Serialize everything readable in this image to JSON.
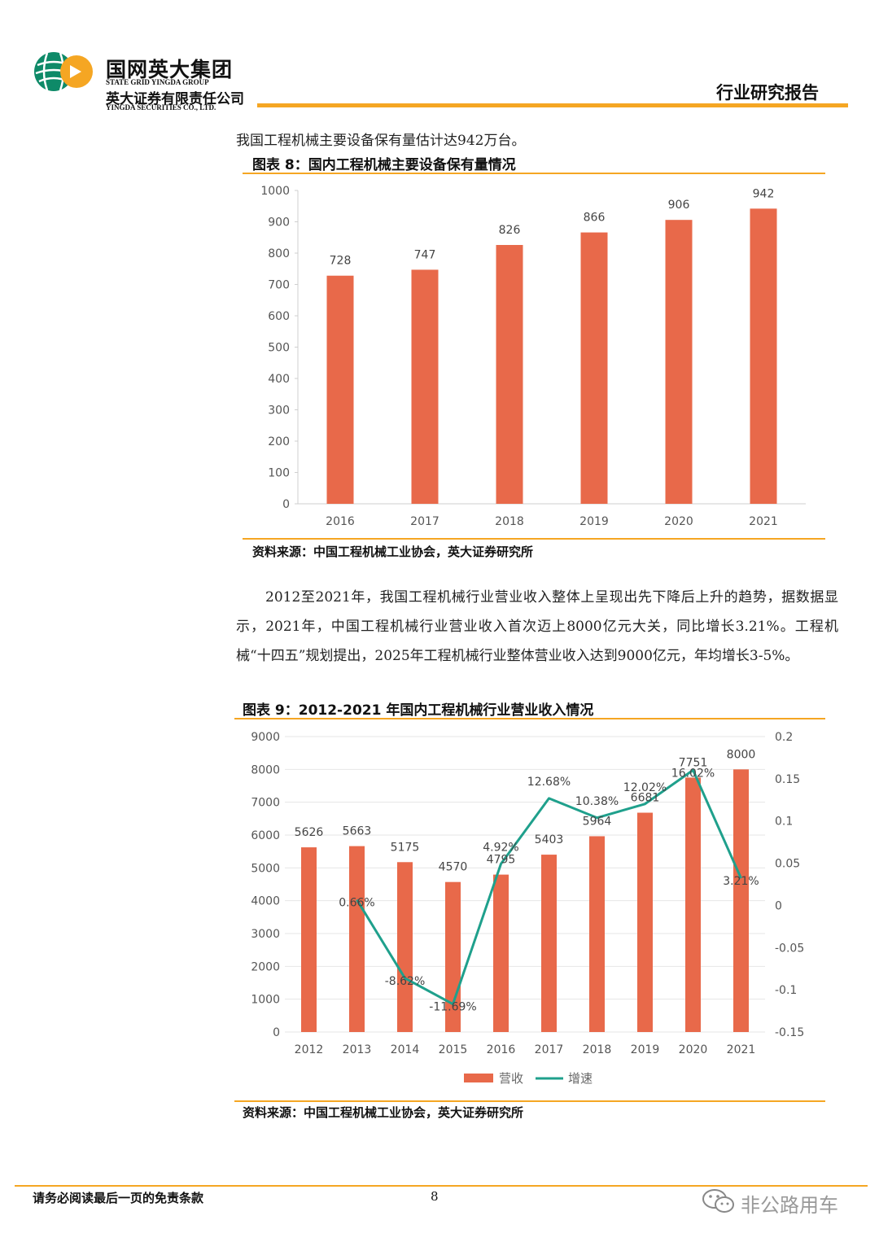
{
  "header": {
    "logo_cn": "国网英大集团",
    "logo_en": "STATE GRID YINGDA GROUP",
    "company_cn": "英大证券有限责任公司",
    "company_en": "YINGDA SECURITIES CO., LTD.",
    "report_type": "行业研究报告"
  },
  "intro_line": "我国工程机械主要设备保有量估计达942万台。",
  "figure8": {
    "caption": "图表 8：国内工程机械主要设备保有量情况",
    "source": "资料来源：中国工程机械工业协会，英大证券研究所"
  },
  "paragraph": "2012至2021年，我国工程机械行业营业收入整体上呈现出先下降后上升的趋势，据数据显示，2021年，中国工程机械行业营业收入首次迈上8000亿元大关，同比增长3.21%。工程机械“十四五”规划提出，2025年工程机械行业整体营业收入达到9000亿元，年均增长3-5%。",
  "figure9": {
    "caption": "图表 9：2012-2021 年国内工程机械行业营业收入情况",
    "source": "资料来源：中国工程机械工业协会，英大证券研究所"
  },
  "chart_data": [
    {
      "type": "bar",
      "categories": [
        "2016",
        "2017",
        "2018",
        "2019",
        "2020",
        "2021"
      ],
      "values": [
        728,
        747,
        826,
        866,
        906,
        942
      ],
      "ylim": [
        0,
        1000
      ],
      "yticks": [
        0,
        100,
        200,
        300,
        400,
        500,
        600,
        700,
        800,
        900,
        1000
      ],
      "color": "#e8694a"
    },
    {
      "type": "bar+line",
      "categories": [
        "2012",
        "2013",
        "2014",
        "2015",
        "2016",
        "2017",
        "2018",
        "2019",
        "2020",
        "2021"
      ],
      "series": [
        {
          "name": "营收",
          "type": "bar",
          "axis": "left",
          "values": [
            5626,
            5663,
            5175,
            4570,
            4795,
            5403,
            5964,
            6681,
            7751,
            8000
          ],
          "color": "#e8694a"
        },
        {
          "name": "增速",
          "type": "line",
          "axis": "right",
          "values": [
            null,
            0.0066,
            -0.0862,
            -0.1169,
            0.0492,
            0.1268,
            0.1038,
            0.1202,
            0.1602,
            0.0321
          ],
          "labels": [
            "",
            "0.66%",
            "-8.62%",
            "-11.69%",
            "4.92%",
            "12.68%",
            "10.38%",
            "12.02%",
            "16.02%",
            "3.21%"
          ],
          "color": "#1fa08c"
        }
      ],
      "ylim": [
        0,
        9000
      ],
      "yticks": [
        0,
        1000,
        2000,
        3000,
        4000,
        5000,
        6000,
        7000,
        8000,
        9000
      ],
      "y2lim": [
        -0.15,
        0.2
      ],
      "y2ticks": [
        "-0.15",
        "-0.1",
        "-0.05",
        "0",
        "0.05",
        "0.1",
        "0.15",
        "0.2"
      ]
    }
  ],
  "footer": {
    "disclaimer": "请务必阅读最后一页的免责条款",
    "page_number": "8",
    "watermark": "非公路用车"
  }
}
